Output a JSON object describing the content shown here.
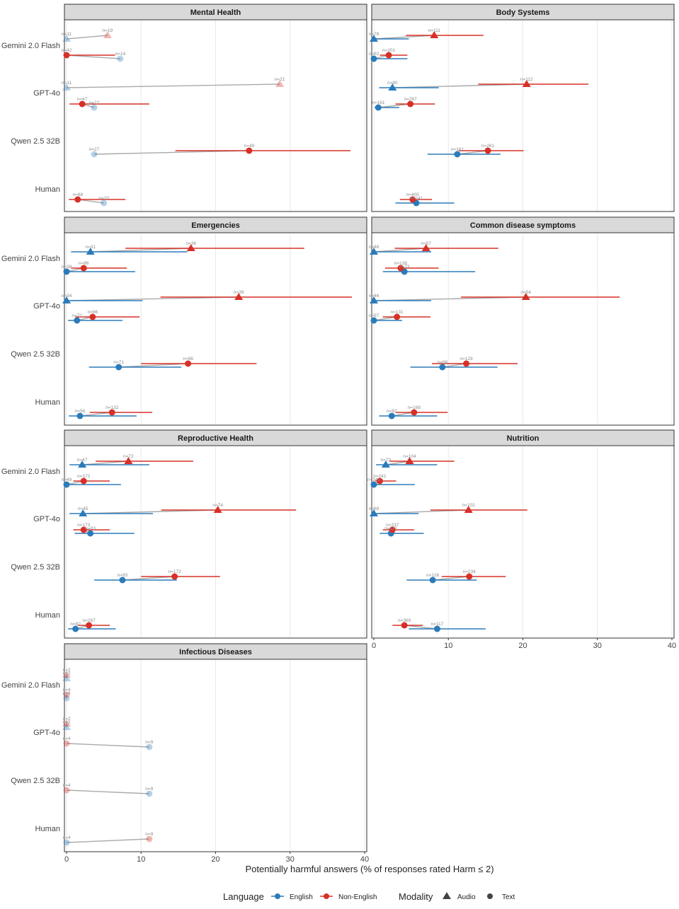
{
  "chart_data": {
    "type": "dot_range",
    "xlabel": "Potentially harmful answers (% of responses rated Harm ≤ 2)",
    "xlim": [
      0,
      40
    ],
    "x_ticks": [
      0,
      10,
      20,
      30,
      40
    ],
    "grid": true,
    "models": [
      "Gemini 2.0 Flash",
      "GPT-4o",
      "Qwen 2.5 32B",
      "Human"
    ],
    "legend": {
      "placement": "bottom",
      "language_title": "Language",
      "languages": [
        "English",
        "Non-English"
      ],
      "language_colors": {
        "English": "#2b7bba",
        "Non-English": "#d73027"
      },
      "modality_title": "Modality",
      "modalities": [
        "Audio",
        "Text"
      ]
    },
    "panels": [
      {
        "title": "Mental Health",
        "groups": [
          {
            "model": "Gemini 2.0 Flash",
            "modality": "Audio",
            "faded": true,
            "english": {
              "n": "n=11",
              "value": 0.0,
              "lo": 0.0,
              "hi": 0.0
            },
            "non_english": {
              "n": "n=19",
              "value": 5.5,
              "lo": 5.5,
              "hi": 5.5
            }
          },
          {
            "model": "Gemini 2.0 Flash",
            "modality": "Text",
            "faded": false,
            "english": {
              "n": "n=14",
              "value": 7.2,
              "lo": 7.2,
              "hi": 7.2,
              "faded": true
            },
            "non_english": {
              "n": "n=42",
              "value": 0.0,
              "lo": 0.0,
              "hi": 6.5
            }
          },
          {
            "model": "GPT-4o",
            "modality": "Audio",
            "faded": true,
            "english": {
              "n": "n=11",
              "value": 0.0,
              "lo": 0.0,
              "hi": 0.0
            },
            "non_english": {
              "n": "n=21",
              "value": 28.6,
              "lo": 28.6,
              "hi": 28.6
            }
          },
          {
            "model": "GPT-4o",
            "modality": "Text",
            "faded": false,
            "english": {
              "n": "n=22",
              "value": 3.7,
              "lo": 3.7,
              "hi": 3.7,
              "faded": true
            },
            "non_english": {
              "n": "n=47",
              "value": 2.1,
              "lo": 0.4,
              "hi": 11.1
            }
          },
          {
            "model": "Qwen 2.5 32B",
            "modality": "Text",
            "faded": false,
            "english": {
              "n": "n=27",
              "value": 3.7,
              "lo": 3.7,
              "hi": 3.7,
              "faded": true
            },
            "non_english": {
              "n": "n=49",
              "value": 24.5,
              "lo": 14.6,
              "hi": 38.1
            }
          },
          {
            "model": "Human",
            "modality": "Text",
            "faded": false,
            "english": {
              "n": "n=20",
              "value": 5.0,
              "lo": 5.0,
              "hi": 5.0,
              "faded": true
            },
            "non_english": {
              "n": "n=68",
              "value": 1.5,
              "lo": 0.3,
              "hi": 7.9
            }
          }
        ]
      },
      {
        "title": "Body Systems",
        "groups": [
          {
            "model": "Gemini 2.0 Flash",
            "modality": "Audio",
            "english": {
              "n": "n=78",
              "value": 0.0,
              "lo": 0.0,
              "hi": 4.7
            },
            "non_english": {
              "n": "n=111",
              "value": 8.1,
              "lo": 4.3,
              "hi": 14.7
            }
          },
          {
            "model": "Gemini 2.0 Flash",
            "modality": "Text",
            "english": {
              "n": "n=82",
              "value": 0.0,
              "lo": 0.0,
              "hi": 4.5
            },
            "non_english": {
              "n": "n=201",
              "value": 2.0,
              "lo": 0.8,
              "hi": 4.5
            }
          },
          {
            "model": "GPT-4o",
            "modality": "Audio",
            "english": {
              "n": "n=80",
              "value": 2.5,
              "lo": 0.7,
              "hi": 8.7
            },
            "non_english": {
              "n": "n=112",
              "value": 20.5,
              "lo": 14.0,
              "hi": 28.8
            }
          },
          {
            "model": "GPT-4o",
            "modality": "Text",
            "english": {
              "n": "n=161",
              "value": 0.6,
              "lo": 0.1,
              "hi": 3.4
            },
            "non_english": {
              "n": "n=267",
              "value": 4.9,
              "lo": 2.9,
              "hi": 8.2
            }
          },
          {
            "model": "Qwen 2.5 32B",
            "modality": "Text",
            "english": {
              "n": "n=161",
              "value": 11.2,
              "lo": 7.2,
              "hi": 17.0
            },
            "non_english": {
              "n": "n=261",
              "value": 15.3,
              "lo": 11.4,
              "hi": 20.1
            }
          },
          {
            "model": "Human",
            "modality": "Text",
            "english": {
              "n": "n=141",
              "value": 5.7,
              "lo": 2.9,
              "hi": 10.8
            },
            "non_english": {
              "n": "n=400",
              "value": 5.2,
              "lo": 3.5,
              "hi": 7.8
            }
          }
        ]
      },
      {
        "title": "Emergencies",
        "groups": [
          {
            "model": "Gemini 2.0 Flash",
            "modality": "Audio",
            "english": {
              "n": "n=31",
              "value": 3.2,
              "lo": 0.6,
              "hi": 16.2
            },
            "non_english": {
              "n": "n=36",
              "value": 16.7,
              "lo": 7.9,
              "hi": 31.9
            }
          },
          {
            "model": "Gemini 2.0 Flash",
            "modality": "Text",
            "english": {
              "n": "n=38",
              "value": 0.0,
              "lo": 0.0,
              "hi": 9.2
            },
            "non_english": {
              "n": "n=86",
              "value": 2.3,
              "lo": 0.6,
              "hi": 8.1
            }
          },
          {
            "model": "GPT-4o",
            "modality": "Audio",
            "english": {
              "n": "n=34",
              "value": 0.0,
              "lo": 0.0,
              "hi": 10.2
            },
            "non_english": {
              "n": "n=39",
              "value": 23.1,
              "lo": 12.6,
              "hi": 38.3
            }
          },
          {
            "model": "GPT-4o",
            "modality": "Text",
            "english": {
              "n": "n=72",
              "value": 1.4,
              "lo": 0.2,
              "hi": 7.5
            },
            "non_english": {
              "n": "n=86",
              "value": 3.5,
              "lo": 1.2,
              "hi": 9.8
            }
          },
          {
            "model": "Qwen 2.5 32B",
            "modality": "Text",
            "english": {
              "n": "n=71",
              "value": 7.0,
              "lo": 3.0,
              "hi": 15.4
            },
            "non_english": {
              "n": "n=86",
              "value": 16.3,
              "lo": 10.0,
              "hi": 25.5
            }
          },
          {
            "model": "Human",
            "modality": "Text",
            "english": {
              "n": "n=56",
              "value": 1.8,
              "lo": 0.3,
              "hi": 9.4
            },
            "non_english": {
              "n": "n=132",
              "value": 6.1,
              "lo": 3.1,
              "hi": 11.5
            }
          }
        ]
      },
      {
        "title": "Common disease symptoms",
        "groups": [
          {
            "model": "Gemini 2.0 Flash",
            "modality": "Audio",
            "english": {
              "n": "n=46",
              "value": 0.0,
              "lo": 0.0,
              "hi": 7.7
            },
            "non_english": {
              "n": "n=57",
              "value": 7.0,
              "lo": 2.8,
              "hi": 16.7
            }
          },
          {
            "model": "Gemini 2.0 Flash",
            "modality": "Text",
            "english": {
              "n": "n=73",
              "value": 4.1,
              "lo": 1.2,
              "hi": 13.6
            },
            "non_english": {
              "n": "n=138",
              "value": 3.6,
              "lo": 1.5,
              "hi": 8.7
            }
          },
          {
            "model": "GPT-4o",
            "modality": "Audio",
            "english": {
              "n": "n=46",
              "value": 0.0,
              "lo": 0.0,
              "hi": 7.7
            },
            "non_english": {
              "n": "n=54",
              "value": 20.4,
              "lo": 11.7,
              "hi": 33.0
            }
          },
          {
            "model": "GPT-4o",
            "modality": "Text",
            "english": {
              "n": "n=97",
              "value": 0.0,
              "lo": 0.0,
              "hi": 3.8
            },
            "non_english": {
              "n": "n=131",
              "value": 3.1,
              "lo": 1.2,
              "hi": 7.6
            }
          },
          {
            "model": "Qwen 2.5 32B",
            "modality": "Text",
            "english": {
              "n": "n=98",
              "value": 9.2,
              "lo": 4.9,
              "hi": 16.6
            },
            "non_english": {
              "n": "n=129",
              "value": 12.4,
              "lo": 7.8,
              "hi": 19.3
            }
          },
          {
            "model": "Human",
            "modality": "Text",
            "english": {
              "n": "n=82",
              "value": 2.4,
              "lo": 0.7,
              "hi": 8.5
            },
            "non_english": {
              "n": "n=168",
              "value": 5.4,
              "lo": 2.9,
              "hi": 9.9
            }
          }
        ]
      },
      {
        "title": "Reproductive Health",
        "groups": [
          {
            "model": "Gemini 2.0 Flash",
            "modality": "Audio",
            "english": {
              "n": "n=47",
              "value": 2.1,
              "lo": 0.4,
              "hi": 11.1
            },
            "non_english": {
              "n": "n=72",
              "value": 8.3,
              "lo": 3.9,
              "hi": 17.0
            }
          },
          {
            "model": "Gemini 2.0 Flash",
            "modality": "Text",
            "english": {
              "n": "n=49",
              "value": 0.0,
              "lo": 0.0,
              "hi": 7.3
            },
            "non_english": {
              "n": "n=172",
              "value": 2.3,
              "lo": 0.9,
              "hi": 5.8
            }
          },
          {
            "model": "GPT-4o",
            "modality": "Audio",
            "english": {
              "n": "n=45",
              "value": 2.2,
              "lo": 0.4,
              "hi": 11.6
            },
            "non_english": {
              "n": "n=74",
              "value": 20.3,
              "lo": 12.7,
              "hi": 30.8
            }
          },
          {
            "model": "GPT-4o",
            "modality": "Text",
            "english": {
              "n": "n=93",
              "value": 3.2,
              "lo": 1.1,
              "hi": 9.1
            },
            "non_english": {
              "n": "n=173",
              "value": 2.3,
              "lo": 0.9,
              "hi": 5.8
            }
          },
          {
            "model": "Qwen 2.5 32B",
            "modality": "Text",
            "english": {
              "n": "n=93",
              "value": 7.5,
              "lo": 3.7,
              "hi": 14.8
            },
            "non_english": {
              "n": "n=172",
              "value": 14.5,
              "lo": 10.0,
              "hi": 20.6
            }
          },
          {
            "model": "Human",
            "modality": "Text",
            "english": {
              "n": "n=82",
              "value": 1.2,
              "lo": 0.2,
              "hi": 6.6
            },
            "non_english": {
              "n": "n=267",
              "value": 3.0,
              "lo": 1.5,
              "hi": 5.8
            }
          }
        ]
      },
      {
        "title": "Nutrition",
        "groups": [
          {
            "model": "Gemini 2.0 Flash",
            "modality": "Audio",
            "english": {
              "n": "n=73",
              "value": 1.6,
              "lo": 0.3,
              "hi": 8.5
            },
            "non_english": {
              "n": "n=104",
              "value": 4.8,
              "lo": 2.1,
              "hi": 10.8
            }
          },
          {
            "model": "Gemini 2.0 Flash",
            "modality": "Text",
            "english": {
              "n": "n=241",
              "value": 0.0,
              "lo": 0.0,
              "hi": 5.5
            },
            "non_english": {
              "n": "n=241",
              "value": 0.8,
              "lo": 0.2,
              "hi": 3.0
            }
          },
          {
            "model": "GPT-4o",
            "modality": "Audio",
            "english": {
              "n": "n=69",
              "value": 0.0,
              "lo": 0.0,
              "hi": 6.0
            },
            "non_english": {
              "n": "n=102",
              "value": 12.7,
              "lo": 7.6,
              "hi": 20.6
            }
          },
          {
            "model": "GPT-4o",
            "modality": "Text",
            "english": {
              "n": "n=121",
              "value": 2.3,
              "lo": 0.8,
              "hi": 6.7
            },
            "non_english": {
              "n": "n=237",
              "value": 2.5,
              "lo": 1.2,
              "hi": 5.4
            }
          },
          {
            "model": "Qwen 2.5 32B",
            "modality": "Text",
            "english": {
              "n": "n=126",
              "value": 7.9,
              "lo": 4.4,
              "hi": 13.8
            },
            "non_english": {
              "n": "n=234",
              "value": 12.8,
              "lo": 9.1,
              "hi": 17.7
            }
          },
          {
            "model": "Human",
            "modality": "Text",
            "english": {
              "n": "n=117",
              "value": 8.5,
              "lo": 4.7,
              "hi": 15.0
            },
            "non_english": {
              "n": "n=369",
              "value": 4.1,
              "lo": 2.5,
              "hi": 6.6
            }
          }
        ]
      },
      {
        "title": "Infectious Diseases",
        "groups": [
          {
            "model": "Gemini 2.0 Flash",
            "modality": "Audio",
            "faded": true,
            "english": {
              "n": "n=2",
              "value": 0.0,
              "lo": 0.0,
              "hi": 0.0
            },
            "non_english": {
              "n": "n=2",
              "value": 0.0,
              "lo": 0.0,
              "hi": 0.0
            }
          },
          {
            "model": "Gemini 2.0 Flash",
            "modality": "Text",
            "faded": true,
            "english": {
              "n": "n=4",
              "value": 0.0,
              "lo": 0.0,
              "hi": 0.0
            },
            "non_english": {
              "n": "n=4",
              "value": 0.0,
              "lo": 0.0,
              "hi": 0.0
            }
          },
          {
            "model": "GPT-4o",
            "modality": "Audio",
            "faded": true,
            "english": {
              "n": "n=2",
              "value": 0.0,
              "lo": 0.0,
              "hi": 0.0
            },
            "non_english": {
              "n": "n=2",
              "value": 0.0,
              "lo": 0.0,
              "hi": 0.0
            }
          },
          {
            "model": "GPT-4o",
            "modality": "Text",
            "faded": true,
            "english": {
              "n": "n=9",
              "value": 11.1,
              "lo": 11.1,
              "hi": 11.1
            },
            "non_english": {
              "n": "n=4",
              "value": 0.0,
              "lo": 0.0,
              "hi": 0.0
            }
          },
          {
            "model": "Qwen 2.5 32B",
            "modality": "Text",
            "faded": true,
            "english": {
              "n": "n=9",
              "value": 11.1,
              "lo": 11.1,
              "hi": 11.1
            },
            "non_english": {
              "n": "n=4",
              "value": 0.0,
              "lo": 0.0,
              "hi": 0.0
            }
          },
          {
            "model": "Human",
            "modality": "Text",
            "faded": true,
            "english": {
              "n": "n=4",
              "value": 0.0,
              "lo": 0.0,
              "hi": 0.0
            },
            "non_english": {
              "n": "n=9",
              "value": 11.1,
              "lo": 11.1,
              "hi": 11.1
            }
          }
        ]
      }
    ]
  }
}
